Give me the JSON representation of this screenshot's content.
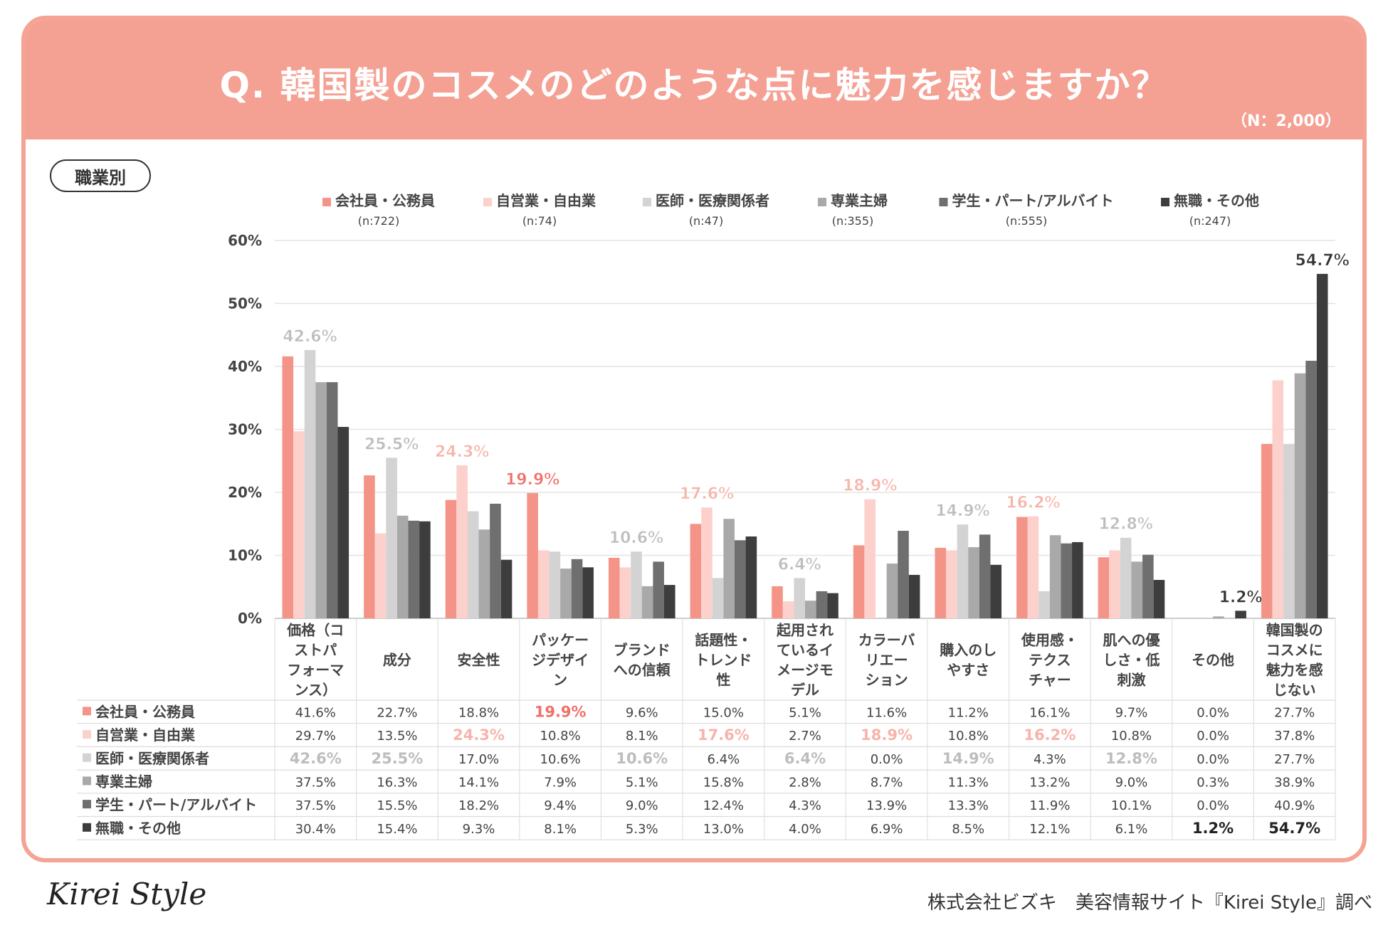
{
  "header": {
    "title": "Q. 韓国製のコスメのどのような点に魅力を感じますか？",
    "sample_size": "（N：2,000）"
  },
  "filter_label": "職業別",
  "footer": {
    "logo_text": "Kirei Style",
    "source": "株式会社ビズキ　美容情報サイト『Kirei Style』調べ"
  },
  "colors": {
    "header": "#f4a093",
    "series": [
      "#f49488",
      "#fcd1cc",
      "#d3d3d3",
      "#a9a9a9",
      "#6f6f6f",
      "#3d3d3d"
    ],
    "highlight_pink": "#f28b82",
    "highlight_gray": "#b5b5b5"
  },
  "chart_data": {
    "type": "bar",
    "title": "Q. 韓国製のコスメのどのような点に魅力を感じますか？",
    "ylabel": "",
    "ylim": [
      0,
      60
    ],
    "yticks": [
      "0%",
      "10%",
      "20%",
      "30%",
      "40%",
      "50%",
      "60%"
    ],
    "grid": true,
    "legend_position": "top",
    "categories": [
      "価格（コストパフォーマンス）",
      "成分",
      "安全性",
      "パッケージデザイン",
      "ブランドへの信頼",
      "話題性・トレンド性",
      "起用されているイメージモデル",
      "カラーバリエーション",
      "購入のしやすさ",
      "使用感・テクスチャー",
      "肌への優しさ・低刺激",
      "その他",
      "韓国製のコスメに魅力を感じない"
    ],
    "category_lines": [
      [
        "価格（コ",
        "ストパ",
        "フォーマ",
        "ンス）"
      ],
      [
        "成分"
      ],
      [
        "安全性"
      ],
      [
        "パッケー",
        "ジデザイ",
        "ン"
      ],
      [
        "ブランド",
        "への信頼"
      ],
      [
        "話題性・",
        "トレンド",
        "性"
      ],
      [
        "起用され",
        "ているイ",
        "メージモ",
        "デル"
      ],
      [
        "カラーバ",
        "リエー",
        "ション"
      ],
      [
        "購入のし",
        "やすさ"
      ],
      [
        "使用感・",
        "テクス",
        "チャー"
      ],
      [
        "肌への優",
        "しさ・低",
        "刺激"
      ],
      [
        "その他"
      ],
      [
        "韓国製の",
        "コスメに",
        "魅力を感",
        "じない"
      ]
    ],
    "series": [
      {
        "name": "会社員・公務員",
        "count": "(n:722)",
        "values": [
          41.6,
          22.7,
          18.8,
          19.9,
          9.6,
          15.0,
          5.1,
          11.6,
          11.2,
          16.1,
          9.7,
          0.0,
          27.7
        ]
      },
      {
        "name": "自営業・自由業",
        "count": "(n:74)",
        "values": [
          29.7,
          13.5,
          24.3,
          10.8,
          8.1,
          17.6,
          2.7,
          18.9,
          10.8,
          16.2,
          10.8,
          0.0,
          37.8
        ]
      },
      {
        "name": "医師・医療関係者",
        "count": "(n:47)",
        "values": [
          42.6,
          25.5,
          17.0,
          10.6,
          10.6,
          6.4,
          6.4,
          0.0,
          14.9,
          4.3,
          12.8,
          0.0,
          27.7
        ]
      },
      {
        "name": "専業主婦",
        "count": "(n:355)",
        "values": [
          37.5,
          16.3,
          14.1,
          7.9,
          5.1,
          15.8,
          2.8,
          8.7,
          11.3,
          13.2,
          9.0,
          0.3,
          38.9
        ]
      },
      {
        "name": "学生・パート/アルバイト",
        "count": "(n:555)",
        "values": [
          37.5,
          15.5,
          18.2,
          9.4,
          9.0,
          12.4,
          4.3,
          13.9,
          13.3,
          11.9,
          10.1,
          0.0,
          40.9
        ]
      },
      {
        "name": "無職・その他",
        "count": "(n:247)",
        "values": [
          30.4,
          15.4,
          9.3,
          8.1,
          5.3,
          13.0,
          4.0,
          6.9,
          8.5,
          12.1,
          6.1,
          1.2,
          54.7
        ]
      }
    ],
    "table_values": [
      [
        "41.6%",
        "22.7%",
        "18.8%",
        "19.9%",
        "9.6%",
        "15.0%",
        "5.1%",
        "11.6%",
        "11.2%",
        "16.1%",
        "9.7%",
        "0.0%",
        "27.7%"
      ],
      [
        "29.7%",
        "13.5%",
        "24.3%",
        "10.8%",
        "8.1%",
        "17.6%",
        "2.7%",
        "18.9%",
        "10.8%",
        "16.2%",
        "10.8%",
        "0.0%",
        "37.8%"
      ],
      [
        "42.6%",
        "25.5%",
        "17.0%",
        "10.6%",
        "10.6%",
        "6.4%",
        "6.4%",
        "0.0%",
        "14.9%",
        "4.3%",
        "12.8%",
        "0.0%",
        "27.7%"
      ],
      [
        "37.5%",
        "16.3%",
        "14.1%",
        "7.9%",
        "5.1%",
        "15.8%",
        "2.8%",
        "8.7%",
        "11.3%",
        "13.2%",
        "9.0%",
        "0.3%",
        "38.9%"
      ],
      [
        "37.5%",
        "15.5%",
        "18.2%",
        "9.4%",
        "9.0%",
        "12.4%",
        "4.3%",
        "13.9%",
        "13.3%",
        "11.9%",
        "10.1%",
        "0.0%",
        "40.9%"
      ],
      [
        "30.4%",
        "15.4%",
        "9.3%",
        "8.1%",
        "5.3%",
        "13.0%",
        "4.0%",
        "6.9%",
        "8.5%",
        "12.1%",
        "6.1%",
        "1.2%",
        "54.7%"
      ]
    ],
    "peak_labels": [
      {
        "category": 0,
        "series": 2,
        "text": "42.6%",
        "style": "gray"
      },
      {
        "category": 1,
        "series": 2,
        "text": "25.5%",
        "style": "gray"
      },
      {
        "category": 2,
        "series": 1,
        "text": "24.3%",
        "style": "pink"
      },
      {
        "category": 3,
        "series": 0,
        "text": "19.9%",
        "style": "red"
      },
      {
        "category": 4,
        "series": 2,
        "text": "10.6%",
        "style": "gray"
      },
      {
        "category": 5,
        "series": 1,
        "text": "17.6%",
        "style": "pink"
      },
      {
        "category": 6,
        "series": 2,
        "text": "6.4%",
        "style": "gray"
      },
      {
        "category": 7,
        "series": 1,
        "text": "18.9%",
        "style": "pink"
      },
      {
        "category": 8,
        "series": 2,
        "text": "14.9%",
        "style": "gray"
      },
      {
        "category": 9,
        "series": 1,
        "text": "16.2%",
        "style": "pink"
      },
      {
        "category": 10,
        "series": 2,
        "text": "12.8%",
        "style": "gray"
      },
      {
        "category": 11,
        "series": 5,
        "text": "1.2%",
        "style": "dark"
      },
      {
        "category": 12,
        "series": 5,
        "text": "54.7%",
        "style": "dark"
      }
    ]
  }
}
